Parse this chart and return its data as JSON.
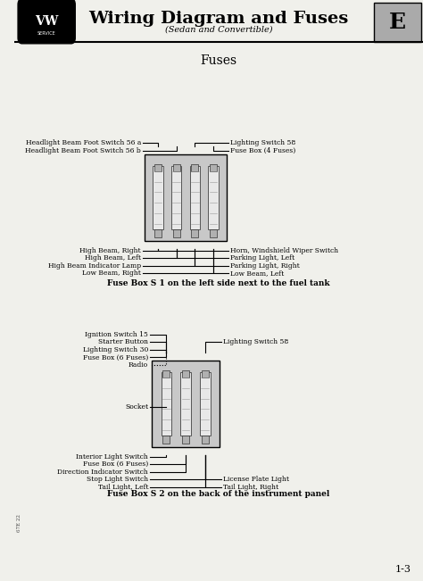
{
  "bg_color": "#f0f0eb",
  "title": "Wiring Diagram and Fuses",
  "subtitle": "(Sedan and Convertible)",
  "section_label": "E",
  "section_title": "Fuses",
  "fuse_box1": {
    "label": "Fuse Box S 1 on the left side next to the fuel tank",
    "left_labels_top": [
      "Headlight Beam Foot Switch 56 a",
      "Headlight Beam Foot Switch 56 b"
    ],
    "right_labels_top": [
      "Lighting Switch 58",
      "Fuse Box (4 Fuses)"
    ],
    "left_labels_bottom": [
      "High Beam, Right",
      "High Beam, Left",
      "High Beam Indicator Lamp",
      "Low Beam, Right"
    ],
    "right_labels_bottom": [
      "Horn, Windshield Wiper Switch",
      "Parking Light, Left",
      "Parking Light, Right",
      "Low Beam, Left"
    ]
  },
  "fuse_box2": {
    "label": "Fuse Box S 2 on the back of the instrument panel",
    "left_labels_top": [
      "Ignition Switch 15",
      "Starter Button",
      "Lighting Switch 30",
      "Fuse Box (6 Fuses)",
      "Radio"
    ],
    "right_labels_top": [
      "Lighting Switch 58"
    ],
    "left_labels_bottom": [
      "Interior Light Switch",
      "Fuse Box (6 Fuses)",
      "Direction Indicator Switch",
      "Stop Light Switch",
      "Tail Light, Left"
    ],
    "right_labels_bottom": [
      "License Plate Light",
      "Tail Light, Right"
    ]
  },
  "footer_page": "1-3"
}
